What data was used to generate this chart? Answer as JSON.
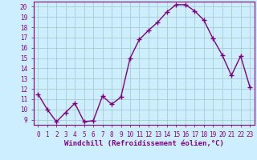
{
  "x": [
    0,
    1,
    2,
    3,
    4,
    5,
    6,
    7,
    8,
    9,
    10,
    11,
    12,
    13,
    14,
    15,
    16,
    17,
    18,
    19,
    20,
    21,
    22,
    23
  ],
  "y": [
    11.5,
    10.0,
    8.8,
    9.7,
    10.6,
    8.8,
    8.9,
    11.3,
    10.5,
    11.2,
    15.0,
    16.8,
    17.7,
    18.5,
    19.5,
    20.2,
    20.2,
    19.6,
    18.7,
    16.9,
    15.3,
    13.3,
    15.2,
    12.2
  ],
  "line_color": "#800080",
  "marker": "+",
  "marker_size": 4,
  "marker_lw": 1.0,
  "bg_color": "#cceeff",
  "grid_color": "#aacccc",
  "xlabel": "Windchill (Refroidissement éolien,°C)",
  "ylabel": "",
  "xlim": [
    -0.5,
    23.5
  ],
  "ylim": [
    8.5,
    20.5
  ],
  "yticks": [
    9,
    10,
    11,
    12,
    13,
    14,
    15,
    16,
    17,
    18,
    19,
    20
  ],
  "xticks": [
    0,
    1,
    2,
    3,
    4,
    5,
    6,
    7,
    8,
    9,
    10,
    11,
    12,
    13,
    14,
    15,
    16,
    17,
    18,
    19,
    20,
    21,
    22,
    23
  ],
  "tick_color": "#800080",
  "axis_color": "#800080",
  "label_fontsize": 6.5,
  "tick_fontsize": 5.5,
  "line_width": 1.0
}
